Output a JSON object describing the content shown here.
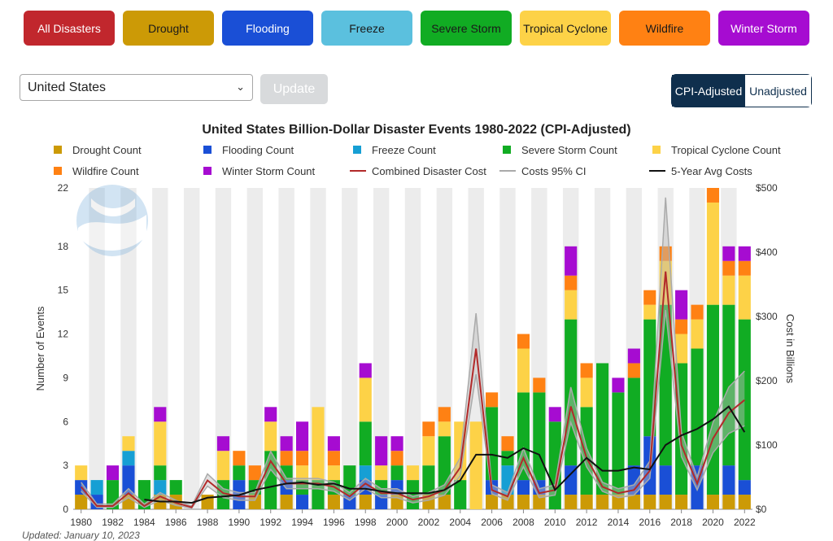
{
  "disaster_buttons": [
    {
      "label": "All Disasters",
      "color": "#c1272d",
      "dark_text": false
    },
    {
      "label": "Drought",
      "color": "#cc9a06",
      "dark_text": true
    },
    {
      "label": "Flooding",
      "color": "#1a4fd6",
      "dark_text": false
    },
    {
      "label": "Freeze",
      "color": "#5bc0de",
      "dark_text": true
    },
    {
      "label": "Severe Storm",
      "color": "#11ac23",
      "dark_text": true
    },
    {
      "label": "Tropical Cyclone",
      "color": "#fdd247",
      "dark_text": true
    },
    {
      "label": "Wildfire",
      "color": "#ff8113",
      "dark_text": true
    },
    {
      "label": "Winter Storm",
      "color": "#a60cd1",
      "dark_text": false
    }
  ],
  "controls": {
    "region_value": "United States",
    "update_label": "Update",
    "cpi_label": "CPI-Adjusted",
    "unadjusted_label": "Unadjusted"
  },
  "footnote": "Updated: January 10, 2023",
  "chart_data": {
    "type": "bar",
    "title": "United States Billion-Dollar Disaster Events 1980-2022 (CPI-Adjusted)",
    "ylabel": "Number of Events",
    "y2label": "Cost in Billions",
    "ylim": [
      0,
      22
    ],
    "y_ticks": [
      0,
      3,
      6,
      9,
      12,
      15,
      18,
      22
    ],
    "y2lim": [
      0,
      500
    ],
    "y2_ticks": [
      "$0",
      "$100",
      "$200",
      "$300",
      "$400",
      "$500"
    ],
    "x": [
      1980,
      1981,
      1982,
      1983,
      1984,
      1985,
      1986,
      1987,
      1988,
      1989,
      1990,
      1991,
      1992,
      1993,
      1994,
      1995,
      1996,
      1997,
      1998,
      1999,
      2000,
      2001,
      2002,
      2003,
      2004,
      2005,
      2006,
      2007,
      2008,
      2009,
      2010,
      2011,
      2012,
      2013,
      2014,
      2015,
      2016,
      2017,
      2018,
      2019,
      2020,
      2021,
      2022
    ],
    "x_tick_labels": [
      "1980",
      "1982",
      "1984",
      "1986",
      "1988",
      "1990",
      "1992",
      "1994",
      "1996",
      "1998",
      "2000",
      "2002",
      "2004",
      "2006",
      "2008",
      "2010",
      "2012",
      "2014",
      "2016",
      "2018",
      "2020",
      "2022"
    ],
    "bar_series": [
      {
        "name": "Drought Count",
        "color": "#cc9a06",
        "values": [
          1,
          0,
          0,
          1,
          0,
          1,
          1,
          0,
          1,
          0,
          0,
          1,
          0,
          1,
          0,
          0,
          1,
          0,
          1,
          0,
          1,
          0,
          1,
          1,
          0,
          0,
          1,
          1,
          1,
          1,
          0,
          1,
          1,
          1,
          1,
          1,
          1,
          1,
          1,
          0,
          1,
          1,
          1
        ]
      },
      {
        "name": "Flooding Count",
        "color": "#1a4fd6",
        "values": [
          1,
          1,
          0,
          2,
          0,
          0,
          0,
          0,
          0,
          0,
          2,
          0,
          0,
          1,
          1,
          0,
          0,
          1,
          1,
          1,
          1,
          0,
          0,
          0,
          0,
          0,
          1,
          0,
          1,
          1,
          0,
          2,
          0,
          0,
          0,
          2,
          4,
          2,
          0,
          3,
          0,
          2,
          1
        ]
      },
      {
        "name": "Freeze Count",
        "color": "#169fd4",
        "values": [
          0,
          1,
          0,
          1,
          0,
          1,
          0,
          0,
          0,
          0,
          0,
          0,
          0,
          0,
          0,
          0,
          0,
          0,
          1,
          0,
          0,
          0,
          0,
          0,
          0,
          0,
          0,
          2,
          0,
          0,
          0,
          0,
          0,
          0,
          0,
          0,
          0,
          0,
          0,
          0,
          0,
          0,
          0
        ]
      },
      {
        "name": "Severe Storm Count",
        "color": "#11ac23",
        "values": [
          0,
          0,
          2,
          0,
          2,
          1,
          1,
          0,
          0,
          2,
          1,
          1,
          4,
          1,
          1,
          2,
          1,
          2,
          3,
          1,
          1,
          2,
          2,
          4,
          2,
          0,
          5,
          1,
          6,
          6,
          6,
          10,
          6,
          9,
          7,
          6,
          8,
          11,
          9,
          8,
          13,
          11,
          11
        ]
      },
      {
        "name": "Tropical Cyclone Count",
        "color": "#fdd247",
        "values": [
          1,
          0,
          0,
          1,
          0,
          3,
          0,
          0,
          0,
          2,
          0,
          0,
          2,
          0,
          1,
          5,
          1,
          0,
          3,
          1,
          0,
          1,
          2,
          1,
          4,
          6,
          0,
          0,
          3,
          0,
          0,
          2,
          2,
          0,
          0,
          0,
          1,
          3,
          2,
          2,
          7,
          2,
          3
        ]
      },
      {
        "name": "Wildfire Count",
        "color": "#ff8113",
        "values": [
          0,
          0,
          0,
          0,
          0,
          0,
          0,
          0,
          0,
          0,
          1,
          1,
          0,
          1,
          1,
          0,
          1,
          0,
          0,
          0,
          1,
          0,
          1,
          1,
          0,
          0,
          1,
          1,
          1,
          1,
          0,
          1,
          1,
          0,
          0,
          1,
          1,
          1,
          1,
          1,
          1,
          1,
          1
        ]
      },
      {
        "name": "Winter Storm Count",
        "color": "#a60cd1",
        "values": [
          0,
          0,
          1,
          0,
          0,
          1,
          0,
          0,
          0,
          1,
          0,
          0,
          1,
          1,
          2,
          0,
          1,
          0,
          1,
          2,
          1,
          0,
          0,
          0,
          0,
          0,
          0,
          0,
          0,
          0,
          1,
          2,
          0,
          0,
          1,
          1,
          0,
          0,
          2,
          0,
          0,
          1,
          1
        ]
      }
    ],
    "line_series": [
      {
        "name": "Combined Disaster Cost",
        "color": "#b22a2a",
        "values": [
          35,
          5,
          5,
          25,
          5,
          20,
          10,
          3,
          45,
          25,
          20,
          20,
          75,
          40,
          40,
          40,
          35,
          20,
          40,
          25,
          25,
          15,
          20,
          30,
          65,
          250,
          30,
          20,
          80,
          25,
          30,
          160,
          80,
          35,
          25,
          30,
          60,
          370,
          100,
          40,
          110,
          150,
          170
        ]
      },
      {
        "name": "Costs 95% CI",
        "color": "#aaaaaa",
        "values_low": [
          28,
          3,
          3,
          18,
          3,
          14,
          6,
          2,
          36,
          18,
          14,
          14,
          62,
          32,
          32,
          32,
          28,
          14,
          32,
          18,
          18,
          10,
          14,
          22,
          52,
          210,
          24,
          14,
          66,
          18,
          22,
          135,
          66,
          28,
          18,
          22,
          48,
          310,
          82,
          30,
          88,
          118,
          130
        ],
        "values_high": [
          42,
          8,
          8,
          32,
          8,
          26,
          14,
          5,
          55,
          32,
          26,
          26,
          90,
          48,
          48,
          48,
          42,
          26,
          48,
          32,
          32,
          20,
          26,
          38,
          80,
          305,
          38,
          26,
          95,
          32,
          38,
          190,
          95,
          42,
          32,
          38,
          75,
          485,
          120,
          50,
          135,
          190,
          215
        ]
      },
      {
        "name": "5-Year Avg Costs",
        "color": "#111111",
        "start_year": 1984,
        "values": [
          15,
          12,
          12,
          10,
          18,
          20,
          22,
          30,
          35,
          40,
          42,
          38,
          40,
          32,
          32,
          28,
          25,
          25,
          25,
          30,
          45,
          85,
          85,
          80,
          95,
          85,
          30,
          55,
          80,
          60,
          60,
          65,
          62,
          100,
          115,
          125,
          140,
          160,
          120
        ]
      }
    ],
    "legend_position": "top",
    "grid": "alternating-columns"
  }
}
